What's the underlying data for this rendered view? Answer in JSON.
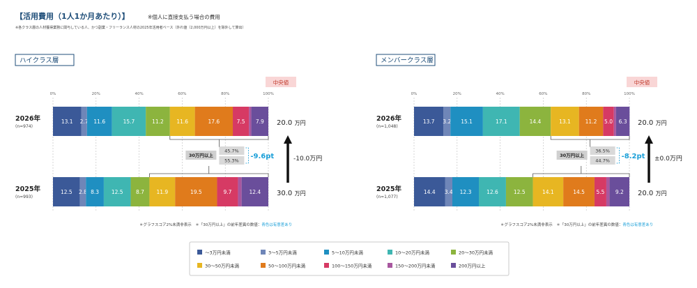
{
  "header": {
    "title": "【活用費用（1人1か月あたり）】",
    "subtitle": "※個人に直接支払う場合の費用",
    "note": "※各クラス層の人材獲得業務に関与している人、かつ副業・フリーランス人材の2025年活用者ベース（外れ値（2,000万円以上）を除外して算出）"
  },
  "colors": [
    "#3b5998",
    "#6f86b8",
    "#1f8fc1",
    "#3fb6b2",
    "#8cb43e",
    "#e7b622",
    "#e07b1c",
    "#d63a64",
    "#a8579f",
    "#6a4e9b"
  ],
  "legend": [
    "～3万円未満",
    "3～5万円未満",
    "5～10万円未満",
    "10～20万円未満",
    "20～30万円未満",
    "30～50万円未満",
    "50～100万円未満",
    "100～150万円未満",
    "150～200万円未満",
    "200万円以上"
  ],
  "median_badge": "中央値",
  "box_label": "30万円以上",
  "footnote_main": "＊グラフスコア2%未満非表示　＊「30万円以上」の前年差異の数値：",
  "footnote_hl": "青色は有意差あり",
  "chart_data": [
    {
      "type": "bar",
      "title": "ハイクラス層",
      "xlim": [
        0,
        100
      ],
      "ticks": [
        "0%",
        "20%",
        "40%",
        "60%",
        "80%",
        "100%"
      ],
      "series": [
        {
          "year": "2026年",
          "n": "(n=974)",
          "values": [
            13.1,
            2.7,
            11.6,
            15.7,
            11.2,
            11.6,
            17.6,
            7.5,
            1.1,
            7.9
          ],
          "labels": [
            "13.1",
            "2.7",
            "11.6",
            "15.7",
            "11.2",
            "11.6",
            "17.6",
            "7.5",
            "",
            "7.9"
          ],
          "median_value": "20.0",
          "median_unit": "万円",
          "over30_pct": "45.7%"
        },
        {
          "year": "2025年",
          "n": "(n=993)",
          "values": [
            12.5,
            2.8,
            8.3,
            12.5,
            8.7,
            11.9,
            19.5,
            9.7,
            1.7,
            12.4
          ],
          "labels": [
            "12.5",
            "2.8",
            "8.3",
            "12.5",
            "8.7",
            "11.9",
            "19.5",
            "9.7",
            "",
            "12.4"
          ],
          "median_value": "30.0",
          "median_unit": "万円",
          "over30_pct": "55.3%"
        }
      ],
      "diff": "-9.6pt",
      "median_change": "-10.0万円",
      "arrow": "up"
    },
    {
      "type": "bar",
      "title": "メンバークラス層",
      "xlim": [
        0,
        100
      ],
      "ticks": [
        "0%",
        "20%",
        "40%",
        "60%",
        "80%",
        "100%"
      ],
      "series": [
        {
          "year": "2026年",
          "n": "(n=1,048)",
          "values": [
            13.7,
            3.2,
            15.1,
            17.1,
            14.4,
            13.1,
            11.2,
            5.0,
            1.0,
            6.3
          ],
          "labels": [
            "13.7",
            "3.2",
            "15.1",
            "17.1",
            "14.4",
            "13.1",
            "11.2",
            "5.0",
            "",
            "6.3"
          ],
          "median_value": "20.0",
          "median_unit": "万円",
          "over30_pct": "36.5%"
        },
        {
          "year": "2025年",
          "n": "(n=1,077)",
          "values": [
            14.4,
            3.4,
            12.3,
            12.6,
            12.5,
            14.1,
            14.5,
            5.5,
            1.5,
            9.2
          ],
          "labels": [
            "14.4",
            "3.4",
            "12.3",
            "12.6",
            "12.5",
            "14.1",
            "14.5",
            "5.5",
            "",
            "9.2"
          ],
          "median_value": "20.0",
          "median_unit": "万円",
          "over30_pct": "44.7%"
        }
      ],
      "diff": "-8.2pt",
      "median_change": "±0.0万円",
      "arrow": "up"
    }
  ]
}
